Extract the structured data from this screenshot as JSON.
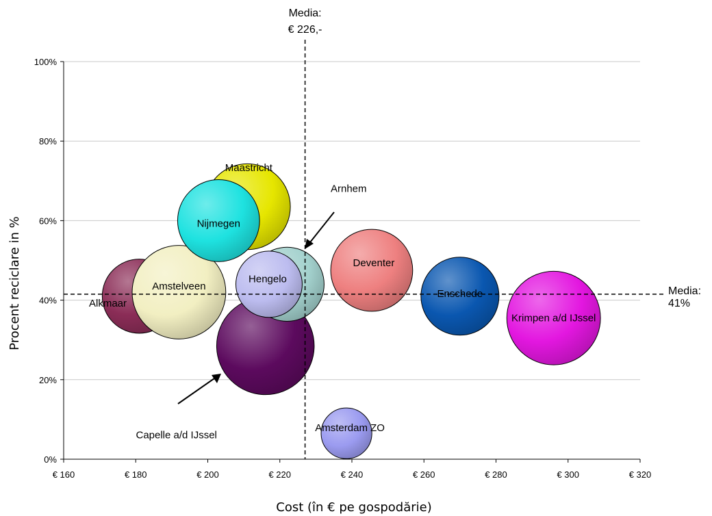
{
  "chart_data": {
    "type": "bubble",
    "xlabel": "Cost (în € pe gospodărie)",
    "ylabel": "Procent reciclare in %",
    "xlim": [
      160,
      320
    ],
    "ylim": [
      0,
      100
    ],
    "x_ticks": [
      160,
      180,
      200,
      220,
      240,
      260,
      280,
      300,
      320
    ],
    "x_tick_labels": [
      "€ 160",
      "€ 180",
      "€ 200",
      "€ 220",
      "€ 240",
      "€ 260",
      "€ 280",
      "€ 300",
      "€ 320"
    ],
    "y_ticks": [
      0,
      20,
      40,
      60,
      80,
      100
    ],
    "y_tick_labels": [
      "0%",
      "20%",
      "40%",
      "60%",
      "80%",
      "100%"
    ],
    "grid": "horizontal",
    "reference_lines": {
      "vertical": {
        "x": 227,
        "label_line1": "Media:",
        "label_line2": "€ 226,-"
      },
      "horizontal": {
        "y": 41.5,
        "label_line1": "Media:",
        "label_line2": "41%"
      }
    },
    "bubbles": [
      {
        "name": "Capelle a/d IJssel",
        "x": 216,
        "y": 28.5,
        "size": 25,
        "color": "#5c0a5e"
      },
      {
        "name": "Alkmaar",
        "x": 181,
        "y": 41,
        "size": 19,
        "color": "#8b2d57"
      },
      {
        "name": "Maastricht",
        "x": 211,
        "y": 63.5,
        "size": 22,
        "color": "#e6e600"
      },
      {
        "name": "Arnhem",
        "x": 222,
        "y": 44,
        "size": 19,
        "color": "#a3d1cd"
      },
      {
        "name": "Amstelveen",
        "x": 192,
        "y": 42,
        "size": 24,
        "color": "#f2efc2"
      },
      {
        "name": "Nijmegen",
        "x": 203,
        "y": 60,
        "size": 21,
        "color": "#1ee2e0"
      },
      {
        "name": "Hengelo",
        "x": 217,
        "y": 44,
        "size": 17,
        "color": "#bcbcef"
      },
      {
        "name": "Deventer",
        "x": 245.5,
        "y": 47.5,
        "size": 21,
        "color": "#ee8080"
      },
      {
        "name": "Enschede",
        "x": 270,
        "y": 41,
        "size": 20,
        "color": "#0a57b0"
      },
      {
        "name": "Krimpen a/d IJssel",
        "x": 296,
        "y": 35.5,
        "size": 24,
        "color": "#e317e0"
      },
      {
        "name": "Amsterdam ZO",
        "x": 238.5,
        "y": 6.5,
        "size": 13,
        "color": "#9b9bf0"
      }
    ]
  }
}
